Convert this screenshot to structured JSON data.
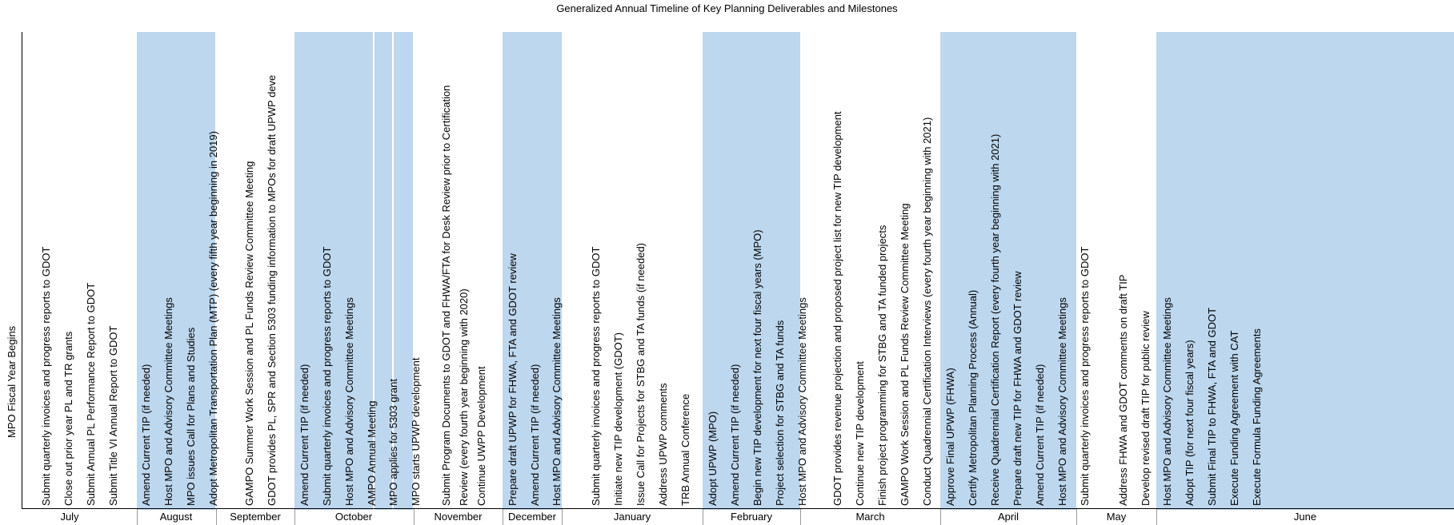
{
  "chart_data": {
    "type": "timeline",
    "title": "Generalized Annual Timeline of Key Planning Deliverables and Milestones",
    "y_axis_label": "MPO Fiscal Year Begins",
    "months": [
      {
        "name": "July",
        "shaded": false,
        "items": [
          "Submit quarterly invoices and progress reports to GDOT",
          "Close out prior year PL and TR grants",
          "Submit Annual PL Performance Report to GDOT",
          "Submit Title VI Annual Report to GDOT"
        ]
      },
      {
        "name": "August",
        "shaded": true,
        "items": [
          "Amend Current TIP (if needed)",
          "Host MPO and Advisory Committee Meetings",
          "MPO issues Call for Plans and Studies",
          "Adopt Metropolitan Transportation Plan (MTP) (every fifth year beginning in 2019)"
        ]
      },
      {
        "name": "September",
        "shaded": false,
        "items": [
          "GAMPO Summer Work Session and PL Funds Review Committee Meeting",
          "GDOT provides PL, SPR and Section 5303 funding information to MPOs for draft UPWP deve"
        ]
      },
      {
        "name": "October",
        "shaded": true,
        "items": [
          "Amend Current TIP (if needed)",
          "Submit quarterly invoices and progress reports to GDOT",
          "Host MPO and Advisory Committee Meetings",
          "AMPO Annual Meeting",
          "MPO applies for 5303 grant",
          "MPO starts UPWP development"
        ]
      },
      {
        "name": "November",
        "shaded": false,
        "items": [
          "Submit Program Documents to GDOT and FHWA/FTA for Desk Review prior to Certification",
          "Review (every fourth year beginning with 2020)",
          "Continue UWPP Development"
        ]
      },
      {
        "name": "December",
        "shaded": true,
        "items": [
          "Prepare draft UPWP for FHWA, FTA and GDOT review",
          "Amend Current TIP (if needed)",
          "Host MPO and Advisory Committee Meetings"
        ]
      },
      {
        "name": "January",
        "shaded": false,
        "items": [
          "Submit quarterly invoices and progress reports to GDOT",
          "Initiate new TIP development (GDOT)",
          "Issue Call for Projects for STBG and TA funds (if needed)",
          "Address UPWP comments",
          "TRB Annual Conference"
        ]
      },
      {
        "name": "February",
        "shaded": true,
        "items": [
          "Adopt UPWP (MPO)",
          "Amend Current TIP (if needed)",
          "Begin new TIP development for next four fiscal years (MPO)",
          "Project selection for STBG and TA funds",
          "Host MPO and Advisory Committee Meetings"
        ]
      },
      {
        "name": "March",
        "shaded": false,
        "items": [
          "GDOT provides revenue projection and proposed project list for new TIP development",
          "Continue new TIP development",
          "Finish project programming for STBG and TA funded projects",
          "GAMPO Work Session and PL Funds Review Committee Meeting",
          "Conduct Quadrennial Certification Interviews (every fourth year beginning with 2021)"
        ]
      },
      {
        "name": "April",
        "shaded": true,
        "items": [
          "Approve Final UPWP (FHWA)",
          "Certify Metropolitan Planning Process (Annual)",
          "Receive Quadrennial Certification Report (every fourth year beginning with 2021)",
          "Prepare draft new TIP for FHWA and GDOT review",
          "Amend Current TIP (if needed)",
          "Host MPO and Advisory Committee Meetings",
          "Submit quarterly invoices and progress reports to GDOT"
        ]
      },
      {
        "name": "May",
        "shaded": false,
        "items": [
          "Address FHWA and GDOT comments on draft TIP",
          "Develop revised draft TIP for public review"
        ]
      },
      {
        "name": "June",
        "shaded": true,
        "items": [
          "Host MPO and Advisory Committee Meetings",
          "Adopt TIP (for next four fiscal years)",
          "Submit Final TIP to FHWA, FTA and GDOT",
          "Execute Funding Agreement with CAT",
          "Execute Formula Funding Agreements"
        ]
      }
    ],
    "colors": {
      "band": "#bdd7ee",
      "axis": "#000000"
    }
  }
}
